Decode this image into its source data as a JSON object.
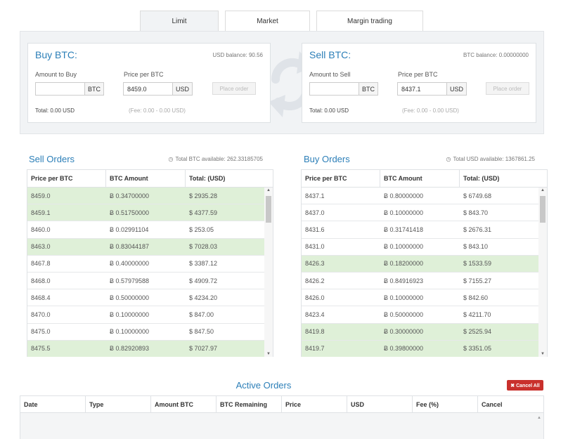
{
  "tabs": [
    {
      "label": "Limit",
      "active": true
    },
    {
      "label": "Market",
      "active": false
    },
    {
      "label": "Margin trading",
      "active": false
    }
  ],
  "buy": {
    "title": "Buy BTC:",
    "balance": "USD balance: 90.56",
    "amount_label": "Amount to Buy",
    "amount_value": "",
    "amount_unit": "BTC",
    "price_label": "Price per BTC",
    "price_value": "8459.0",
    "price_unit": "USD",
    "button": "Place order",
    "total": "Total: 0.00 USD",
    "fee": "(Fee: 0.00 - 0.00 USD)"
  },
  "sell": {
    "title": "Sell BTC:",
    "balance": "BTC balance: 0.00000000",
    "amount_label": "Amount to Sell",
    "amount_value": "",
    "amount_unit": "BTC",
    "price_label": "Price per BTC",
    "price_value": "8437.1",
    "price_unit": "USD",
    "button": "Place order",
    "total": "Total: 0.00 USD",
    "fee": "(Fee: 0.00 - 0.00 USD)"
  },
  "sell_orders": {
    "title": "Sell Orders",
    "available": "Total BTC available: 262.33185705",
    "columns": [
      "Price per BTC",
      "BTC Amount",
      "Total: (USD)"
    ],
    "rows": [
      {
        "price": "8459.0",
        "amount": "Ƀ 0.34700000",
        "total": "$ 2935.28",
        "highlight": true
      },
      {
        "price": "8459.1",
        "amount": "Ƀ 0.51750000",
        "total": "$ 4377.59",
        "highlight": true
      },
      {
        "price": "8460.0",
        "amount": "Ƀ 0.02991104",
        "total": "$ 253.05",
        "highlight": false
      },
      {
        "price": "8463.0",
        "amount": "Ƀ 0.83044187",
        "total": "$ 7028.03",
        "highlight": true
      },
      {
        "price": "8467.8",
        "amount": "Ƀ 0.40000000",
        "total": "$ 3387.12",
        "highlight": false
      },
      {
        "price": "8468.0",
        "amount": "Ƀ 0.57979588",
        "total": "$ 4909.72",
        "highlight": false
      },
      {
        "price": "8468.4",
        "amount": "Ƀ 0.50000000",
        "total": "$ 4234.20",
        "highlight": false
      },
      {
        "price": "8470.0",
        "amount": "Ƀ 0.10000000",
        "total": "$ 847.00",
        "highlight": false
      },
      {
        "price": "8475.0",
        "amount": "Ƀ 0.10000000",
        "total": "$ 847.50",
        "highlight": false
      },
      {
        "price": "8475.5",
        "amount": "Ƀ 0.82920893",
        "total": "$ 7027.97",
        "highlight": true
      }
    ]
  },
  "buy_orders": {
    "title": "Buy Orders",
    "available": "Total USD available: 1367861.25",
    "columns": [
      "Price per BTC",
      "BTC Amount",
      "Total: (USD)"
    ],
    "rows": [
      {
        "price": "8437.1",
        "amount": "Ƀ 0.80000000",
        "total": "$ 6749.68",
        "highlight": false
      },
      {
        "price": "8437.0",
        "amount": "Ƀ 0.10000000",
        "total": "$ 843.70",
        "highlight": false
      },
      {
        "price": "8431.6",
        "amount": "Ƀ 0.31741418",
        "total": "$ 2676.31",
        "highlight": false
      },
      {
        "price": "8431.0",
        "amount": "Ƀ 0.10000000",
        "total": "$ 843.10",
        "highlight": false
      },
      {
        "price": "8426.3",
        "amount": "Ƀ 0.18200000",
        "total": "$ 1533.59",
        "highlight": true
      },
      {
        "price": "8426.2",
        "amount": "Ƀ 0.84916923",
        "total": "$ 7155.27",
        "highlight": false
      },
      {
        "price": "8426.0",
        "amount": "Ƀ 0.10000000",
        "total": "$ 842.60",
        "highlight": false
      },
      {
        "price": "8423.4",
        "amount": "Ƀ 0.50000000",
        "total": "$ 4211.70",
        "highlight": false
      },
      {
        "price": "8419.8",
        "amount": "Ƀ 0.30000000",
        "total": "$ 2525.94",
        "highlight": true
      },
      {
        "price": "8419.7",
        "amount": "Ƀ 0.39800000",
        "total": "$ 3351.05",
        "highlight": true
      }
    ]
  },
  "active_orders": {
    "title": "Active Orders",
    "cancel_all": "✖ Cancel All",
    "columns": [
      "Date",
      "Type",
      "Amount BTC",
      "BTC Remaining",
      "Price",
      "USD",
      "Fee (%)",
      "Cancel"
    ]
  },
  "icons": {
    "info": "clock-icon",
    "swap": "swap-arrows-icon"
  },
  "colors": {
    "accent": "#2c7fb8",
    "highlight_row": "#dff0d8",
    "danger": "#c9302c"
  }
}
